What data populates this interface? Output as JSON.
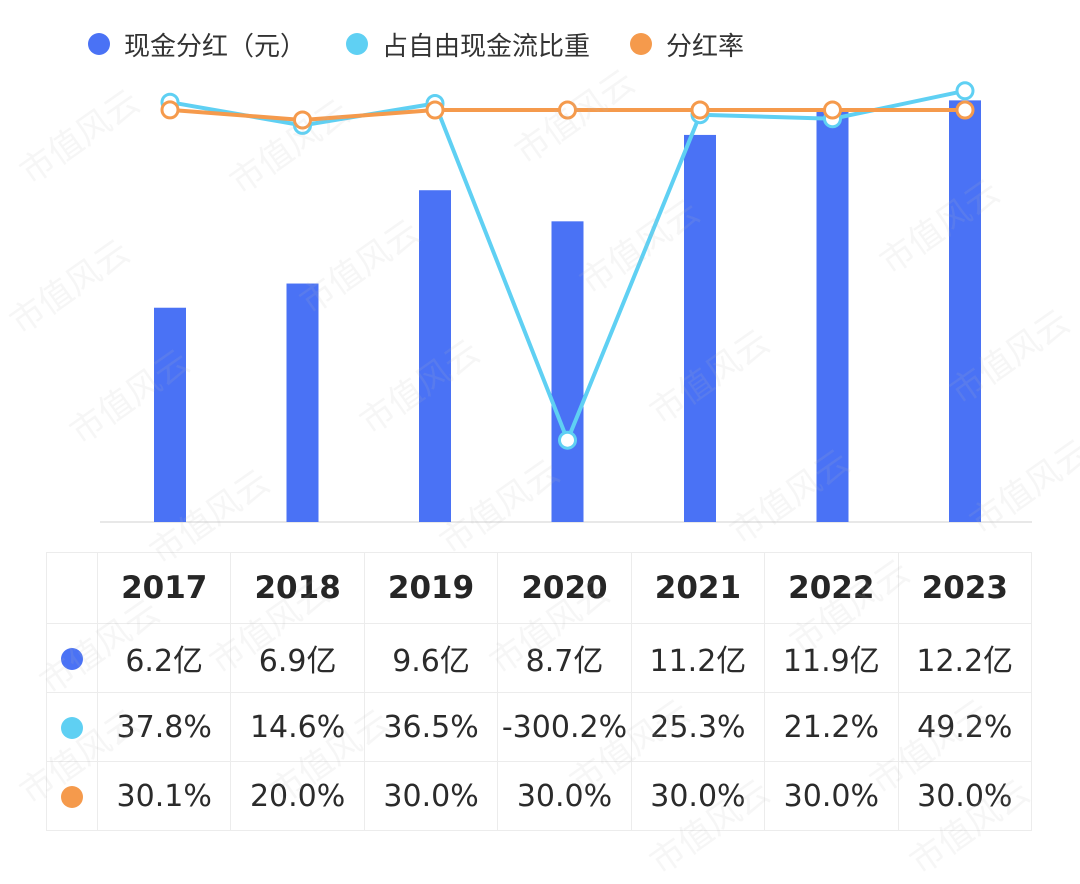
{
  "colors": {
    "bar": "#4a72f5",
    "fcf_line": "#5fd0f3",
    "payout_line": "#f59a4c",
    "axis": "#e8e8e8"
  },
  "legend": [
    {
      "label": "现金分红（元）",
      "color": "#4a72f5"
    },
    {
      "label": "占自由现金流比重",
      "color": "#5fd0f3"
    },
    {
      "label": "分红率",
      "color": "#f59a4c"
    }
  ],
  "table": {
    "years": [
      "2017",
      "2018",
      "2019",
      "2020",
      "2021",
      "2022",
      "2023"
    ],
    "dividend": [
      "6.2亿",
      "6.9亿",
      "9.6亿",
      "8.7亿",
      "11.2亿",
      "11.9亿",
      "12.2亿"
    ],
    "fcf_share": [
      "37.8%",
      "14.6%",
      "36.5%",
      "-300.2%",
      "25.3%",
      "21.2%",
      "49.2%"
    ],
    "payout": [
      "30.1%",
      "20.0%",
      "30.0%",
      "30.0%",
      "30.0%",
      "30.0%",
      "30.0%"
    ]
  },
  "watermark_text": "市值风云",
  "chart_data": {
    "type": "bar",
    "title": "",
    "xlabel": "",
    "ylabel": "",
    "categories": [
      "2017",
      "2018",
      "2019",
      "2020",
      "2021",
      "2022",
      "2023"
    ],
    "series": [
      {
        "name": "现金分红（元）",
        "kind": "bar",
        "unit": "亿",
        "values": [
          6.2,
          6.9,
          9.6,
          8.7,
          11.2,
          11.9,
          12.2
        ]
      },
      {
        "name": "占自由现金流比重",
        "kind": "line",
        "unit": "%",
        "values": [
          37.8,
          14.6,
          36.5,
          -300.2,
          25.3,
          21.2,
          49.2
        ]
      },
      {
        "name": "分红率",
        "kind": "line",
        "unit": "%",
        "values": [
          30.1,
          20.0,
          30.0,
          30.0,
          30.0,
          30.0,
          30.0
        ]
      }
    ],
    "bar_ylim": [
      0,
      12.5
    ],
    "line_ylim": [
      -330,
      50
    ],
    "grid": false,
    "legend": "top-left"
  }
}
